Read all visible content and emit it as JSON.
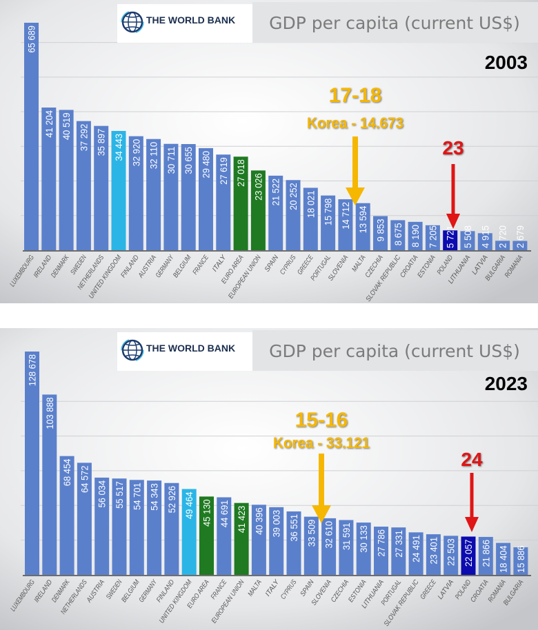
{
  "source_logo": "THE WORLD BANK",
  "colors": {
    "bar": "#5b80cb",
    "uk": "#2bb5e6",
    "eu": "#1f7a22",
    "poland": "#0b0bb0",
    "korea_annotation": "#f5b700",
    "poland_annotation": "#e01515"
  },
  "chart_data": [
    {
      "type": "bar",
      "title": "GDP per capita (current US$)",
      "year_label": "2003",
      "ylim": [
        0,
        70000
      ],
      "grid": true,
      "categories": [
        "LUXEMBOURG",
        "IRELAND",
        "DENMARK",
        "SWEDEN",
        "NETHERLANDS",
        "UNITED KINGDOM",
        "FINLAND",
        "AUSTRIA",
        "GERMANY",
        "BELGIUM",
        "FRANCE",
        "ITALY",
        "EURO AREA",
        "EUROPEAN UNION",
        "SPAIN",
        "CYPRUS",
        "GREECE",
        "PORTUGAL",
        "SLOVENIA",
        "MALTA",
        "CZECHIA",
        "SLOVAK REPUBLIC",
        "CROATIA",
        "ESTONIA",
        "POLAND",
        "LITHUANIA",
        "LATVIA",
        "BULGARIA",
        "ROMANIA"
      ],
      "values": [
        65689,
        41204,
        40519,
        37292,
        35897,
        34443,
        32920,
        32110,
        30711,
        30655,
        29480,
        27619,
        27018,
        23026,
        21522,
        20252,
        18021,
        15798,
        14712,
        13594,
        9853,
        8675,
        8190,
        7205,
        5721,
        5508,
        4915,
        2720,
        2679
      ],
      "value_labels": [
        "65 689",
        "41 204",
        "40 519",
        "37 292",
        "35 897",
        "34 443",
        "32 920",
        "32 110",
        "30 711",
        "30 655",
        "29 480",
        "27 619",
        "27 018",
        "23 026",
        "21 522",
        "20 252",
        "18 021",
        "15 798",
        "14 712",
        "13 594",
        "9 853",
        "8 675",
        "8 190",
        "7 205",
        "5 721",
        "5 508",
        "4 915",
        "2 720",
        "2 679"
      ],
      "annotations": {
        "korea_rank": "17-18",
        "korea_text": "Korea - 14.673",
        "korea_value": 14673,
        "poland_rank": "23"
      }
    },
    {
      "type": "bar",
      "title": "GDP per capita (current US$)",
      "year_label": "2023",
      "ylim": [
        0,
        140000
      ],
      "grid": true,
      "categories": [
        "LUXEMBOURG",
        "IRELAND",
        "DENMARK",
        "NETHERLANDS",
        "AUSTRIA",
        "SWEDEN",
        "BELGIUM",
        "GERMANY",
        "FINLAND",
        "UNITED KINGDOM",
        "EURO AREA",
        "FRANCE",
        "EUROPEAN UNION",
        "MALTA",
        "ITALY",
        "CYPRUS",
        "SPAIN",
        "SLOVENIA",
        "CZECHIA",
        "ESTONIA",
        "LITHUANIA",
        "PORTUGAL",
        "SLOVAK REPUBLIC",
        "GREECE",
        "LATVIA",
        "POLAND",
        "CROATIA",
        "ROMANIA",
        "BULGARIA"
      ],
      "values": [
        128678,
        103888,
        68454,
        64572,
        56034,
        55517,
        54701,
        54343,
        52926,
        49464,
        45130,
        44691,
        41423,
        40396,
        39003,
        36551,
        33509,
        32610,
        31591,
        30133,
        27786,
        27331,
        24491,
        23401,
        22503,
        22057,
        21866,
        18404,
        15886
      ],
      "value_labels": [
        "128 678",
        "103 888",
        "68 454",
        "64 572",
        "56 034",
        "55 517",
        "54 701",
        "54 343",
        "52 926",
        "49 464",
        "45 130",
        "44 691",
        "41 423",
        "40 396",
        "39 003",
        "36 551",
        "33 509",
        "32 610",
        "31 591",
        "30 133",
        "27 786",
        "27 331",
        "24 491",
        "23 401",
        "22 503",
        "22 057",
        "21 866",
        "18 404",
        "15 886"
      ],
      "annotations": {
        "korea_rank": "15-16",
        "korea_text": "Korea - 33.121",
        "korea_value": 33121,
        "poland_rank": "24"
      }
    }
  ]
}
